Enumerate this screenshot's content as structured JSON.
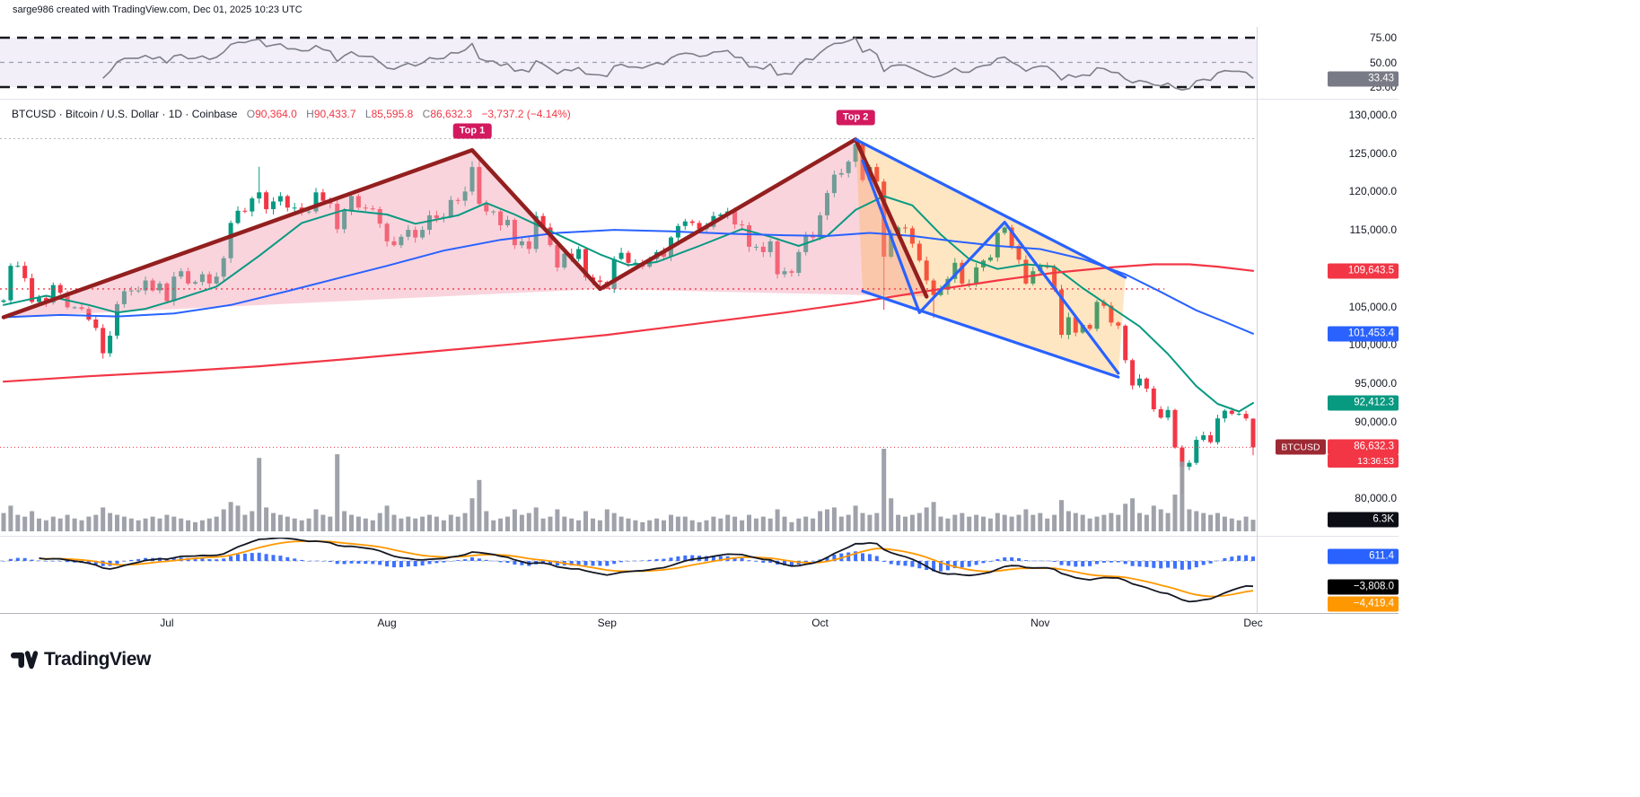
{
  "attribution": "sarge986 created with TradingView.com, Dec 01, 2025 10:23 UTC",
  "brand": {
    "name": "TradingView"
  },
  "symbol": {
    "title": "BTCUSD · Bitcoin / U.S. Dollar · 1D · Coinbase",
    "ohlc": {
      "o_label": "O",
      "o_value": "90,364.0",
      "h_label": "H",
      "h_value": "90,433.7",
      "l_label": "L",
      "l_value": "85,595.8",
      "c_label": "C",
      "c_value": "86,632.3",
      "change": "−3,737.2 (−4.14%)"
    }
  },
  "colors": {
    "up": "#089981",
    "down": "#f23645",
    "ma_fast": "#089981",
    "ma_mid": "#2962ff",
    "ma_slow": "#f23645",
    "top_badge": "#d3195f",
    "pattern_maroon": "#931f1f",
    "pattern_blue": "#2962ff",
    "pink_fill": "rgba(244,160,180,0.45)",
    "orange_fill": "rgba(255,167,38,0.28)",
    "volume": "#9598a1",
    "macd_hist": "#2962ff",
    "macd_line": "#131722",
    "signal_line": "#ff9800",
    "rsi_line": "#7e7e87",
    "rsi_band": "#7b61c4"
  },
  "rsi_panel": {
    "levels": [
      {
        "text": "75.00",
        "value": 75
      },
      {
        "text": "50.00",
        "value": 50
      },
      {
        "text": "25.00",
        "value": 25
      }
    ],
    "last": {
      "text": "33.43",
      "value": 33.43,
      "bg": "#787b86"
    }
  },
  "price_axis": {
    "labels": [
      {
        "text": "130,000.0",
        "price": 130000
      },
      {
        "text": "125,000.0",
        "price": 125000
      },
      {
        "text": "120,000.0",
        "price": 120000
      },
      {
        "text": "115,000.0",
        "price": 115000
      },
      {
        "text": "105,000.0",
        "price": 105000
      },
      {
        "text": "100,000.0",
        "price": 100000
      },
      {
        "text": "95,000.0",
        "price": 95000
      },
      {
        "text": "90,000.0",
        "price": 90000
      },
      {
        "text": "80,000.0",
        "price": 80000
      }
    ],
    "ma_badges": [
      {
        "text": "109,643.5",
        "price": 109643.5,
        "bg": "#f23645"
      },
      {
        "text": "101,453.4",
        "price": 101453.4,
        "bg": "#2962ff"
      },
      {
        "text": "92,412.3",
        "price": 92412.3,
        "bg": "#089981"
      }
    ],
    "last_price": {
      "symbol": "BTCUSD",
      "text": "86,632.3",
      "price": 86632.3,
      "bg": "#f23645",
      "symbol_bg": "#9d2933",
      "countdown": "13:36:53"
    }
  },
  "volume_panel": {
    "last": {
      "text": "6.3K",
      "value": 6.3,
      "bg": "#0b0e14"
    }
  },
  "macd_panel": {
    "badges": [
      {
        "text": "611.4",
        "value": 611.4,
        "bg": "#2962ff"
      },
      {
        "text": "−3,808.0",
        "value": -3808.0,
        "bg": "#000000"
      },
      {
        "text": "−4,419.4",
        "value": -4419.4,
        "bg": "#ff9800"
      }
    ]
  },
  "x_axis": {
    "months": [
      {
        "label": "Jul",
        "index": 23
      },
      {
        "label": "Aug",
        "index": 54
      },
      {
        "label": "Sep",
        "index": 85
      },
      {
        "label": "Oct",
        "index": 115
      },
      {
        "label": "Nov",
        "index": 146
      },
      {
        "label": "Dec",
        "index": 176
      }
    ]
  },
  "chart_data": {
    "type": "candlestick",
    "title": "BTCUSD Bitcoin / U.S. Dollar 1D Coinbase",
    "ylim": [
      80000,
      130000
    ],
    "start_date": "2025-06-08",
    "first_open": 105600,
    "closes": [
      105800,
      110300,
      110300,
      108700,
      105600,
      106100,
      105500,
      107800,
      106800,
      104900,
      104900,
      104700,
      103300,
      102200,
      98900,
      101200,
      105300,
      107000,
      107100,
      107100,
      108400,
      107100,
      108000,
      105700,
      108900,
      109600,
      108000,
      108200,
      109200,
      108000,
      108900,
      111300,
      115900,
      117500,
      117400,
      119100,
      119900,
      117700,
      118700,
      119400,
      117900,
      117900,
      117300,
      117400,
      119900,
      118800,
      118400,
      115100,
      117500,
      119400,
      117900,
      117800,
      117700,
      115800,
      113500,
      113000,
      114100,
      115000,
      114000,
      115000,
      116900,
      116500,
      116700,
      118900,
      118800,
      120000,
      123200,
      118400,
      117400,
      117400,
      115600,
      116300,
      113000,
      113500,
      112500,
      116800,
      115300,
      113000,
      110100,
      111900,
      111200,
      112500,
      108800,
      108400,
      108200,
      107300,
      111200,
      112000,
      110700,
      110700,
      110200,
      111200,
      112100,
      111500,
      114000,
      115500,
      116100,
      115900,
      115100,
      115400,
      116800,
      117000,
      117400,
      115700,
      115600,
      112800,
      112800,
      112100,
      113500,
      109200,
      109600,
      109400,
      112100,
      114300,
      114000,
      116900,
      119800,
      122200,
      122400,
      123900,
      126200,
      121500,
      123200,
      121300,
      111500,
      114600,
      115300,
      115200,
      113200,
      111000,
      108400,
      106500,
      107200,
      108600,
      110700,
      108000,
      108000,
      110100,
      111000,
      111400,
      114600,
      115300,
      112900,
      111100,
      108000,
      109600,
      110300,
      110100,
      107200,
      101300,
      103600,
      101600,
      102600,
      102100,
      105600,
      105100,
      102900,
      102500,
      98000,
      94700,
      95600,
      94300,
      91600,
      90500,
      91500,
      86600,
      84100,
      84600,
      87600,
      88200,
      87300,
      90400,
      91400,
      91000,
      91000,
      90400,
      86632
    ],
    "wick_overrides": {
      "14": {
        "low": 98200
      },
      "36": {
        "high": 123236
      },
      "67": {
        "high": 124474
      },
      "85": {
        "low": 107270
      },
      "120": {
        "high": 126270
      },
      "124": {
        "low": 104582
      },
      "131": {
        "low": 103530
      },
      "166": {
        "low": 80524
      },
      "176": {
        "open": 90364,
        "high": 90433.7,
        "low": 85595.8,
        "close": 86632.3
      }
    },
    "volumes_k": [
      10,
      14,
      9,
      8,
      11,
      7,
      6,
      8,
      7,
      9,
      7,
      6,
      8,
      9,
      13,
      10,
      9,
      8,
      7,
      6,
      7,
      8,
      7,
      9,
      8,
      7,
      6,
      5,
      6,
      7,
      8,
      12,
      16,
      14,
      9,
      11,
      40,
      13,
      10,
      9,
      8,
      7,
      6,
      7,
      12,
      9,
      8,
      42,
      11,
      9,
      8,
      7,
      6,
      10,
      14,
      9,
      7,
      8,
      7,
      8,
      9,
      8,
      6,
      9,
      8,
      10,
      18,
      28,
      11,
      6,
      7,
      8,
      12,
      9,
      10,
      13,
      7,
      8,
      12,
      8,
      7,
      6,
      11,
      7,
      6,
      12,
      10,
      8,
      7,
      6,
      5,
      6,
      7,
      6,
      9,
      8,
      8,
      6,
      5,
      6,
      8,
      7,
      9,
      8,
      6,
      9,
      7,
      8,
      7,
      12,
      8,
      5,
      7,
      8,
      7,
      11,
      12,
      13,
      8,
      9,
      14,
      10,
      9,
      10,
      45,
      18,
      9,
      8,
      9,
      10,
      13,
      16,
      8,
      7,
      9,
      10,
      8,
      9,
      8,
      7,
      10,
      9,
      8,
      9,
      12,
      9,
      10,
      7,
      9,
      17,
      11,
      10,
      9,
      7,
      8,
      9,
      10,
      9,
      15,
      18,
      10,
      9,
      14,
      12,
      10,
      20,
      38,
      12,
      11,
      10,
      9,
      10,
      8,
      7,
      6,
      8,
      6.3
    ],
    "ma_lines": [
      {
        "name": "ma-fast-green",
        "color": "#089981",
        "width": 2,
        "last": 92412.3,
        "points": [
          [
            0,
            105200
          ],
          [
            6,
            106400
          ],
          [
            12,
            105200
          ],
          [
            16,
            104200
          ],
          [
            20,
            104700
          ],
          [
            24,
            105800
          ],
          [
            30,
            107600
          ],
          [
            36,
            111600
          ],
          [
            42,
            115900
          ],
          [
            48,
            117600
          ],
          [
            54,
            117000
          ],
          [
            58,
            115800
          ],
          [
            64,
            116900
          ],
          [
            68,
            118500
          ],
          [
            72,
            117000
          ],
          [
            78,
            114400
          ],
          [
            84,
            111800
          ],
          [
            88,
            110400
          ],
          [
            92,
            110800
          ],
          [
            98,
            112900
          ],
          [
            104,
            115100
          ],
          [
            108,
            114100
          ],
          [
            112,
            112900
          ],
          [
            116,
            114200
          ],
          [
            120,
            117600
          ],
          [
            124,
            119400
          ],
          [
            128,
            118200
          ],
          [
            132,
            114400
          ],
          [
            136,
            111200
          ],
          [
            140,
            109900
          ],
          [
            144,
            110500
          ],
          [
            148,
            110200
          ],
          [
            152,
            107400
          ],
          [
            156,
            104900
          ],
          [
            160,
            102400
          ],
          [
            164,
            98800
          ],
          [
            168,
            94600
          ],
          [
            171,
            92300
          ],
          [
            174,
            91300
          ],
          [
            176,
            92412.3
          ]
        ]
      },
      {
        "name": "ma-mid-blue",
        "color": "#2962ff",
        "width": 2,
        "last": 101453.4,
        "points": [
          [
            0,
            103600
          ],
          [
            8,
            103900
          ],
          [
            16,
            103700
          ],
          [
            24,
            104100
          ],
          [
            32,
            105200
          ],
          [
            40,
            107000
          ],
          [
            48,
            108900
          ],
          [
            54,
            110300
          ],
          [
            62,
            112300
          ],
          [
            70,
            113700
          ],
          [
            78,
            114600
          ],
          [
            86,
            115000
          ],
          [
            94,
            114800
          ],
          [
            102,
            114500
          ],
          [
            110,
            114300
          ],
          [
            116,
            114200
          ],
          [
            122,
            114600
          ],
          [
            128,
            114200
          ],
          [
            134,
            113500
          ],
          [
            140,
            112900
          ],
          [
            146,
            112500
          ],
          [
            152,
            111200
          ],
          [
            158,
            109200
          ],
          [
            163,
            106900
          ],
          [
            168,
            104500
          ],
          [
            172,
            103000
          ],
          [
            176,
            101453.4
          ]
        ]
      },
      {
        "name": "ma-slow-red",
        "color": "#f23645",
        "width": 2.2,
        "last": 109643.5,
        "points": [
          [
            0,
            95200
          ],
          [
            12,
            95900
          ],
          [
            24,
            96500
          ],
          [
            36,
            97200
          ],
          [
            48,
            98100
          ],
          [
            60,
            99100
          ],
          [
            72,
            100100
          ],
          [
            85,
            101300
          ],
          [
            98,
            102800
          ],
          [
            110,
            104200
          ],
          [
            120,
            105500
          ],
          [
            130,
            107000
          ],
          [
            140,
            108400
          ],
          [
            148,
            109400
          ],
          [
            156,
            110100
          ],
          [
            162,
            110500
          ],
          [
            167,
            110500
          ],
          [
            171,
            110200
          ],
          [
            176,
            109643.5
          ]
        ]
      }
    ],
    "drawings": {
      "maroon_lines": [
        [
          [
            0,
            103600
          ],
          [
            66,
            125400
          ],
          [
            84,
            107300
          ]
        ],
        [
          [
            84,
            107300
          ],
          [
            120,
            126800
          ],
          [
            130,
            106300
          ]
        ]
      ],
      "pink_fills": [
        [
          [
            0,
            103600
          ],
          [
            66,
            125400
          ],
          [
            84,
            107300
          ]
        ],
        [
          [
            84,
            107300
          ],
          [
            120,
            126800
          ],
          [
            130,
            106300
          ]
        ]
      ],
      "blue_lines": [
        [
          [
            120,
            126800
          ],
          [
            158,
            108800
          ]
        ],
        [
          [
            121,
            107000
          ],
          [
            157,
            95800
          ]
        ],
        [
          [
            121,
            124000
          ],
          [
            129,
            104200
          ],
          [
            141,
            116000
          ],
          [
            157,
            96300
          ]
        ]
      ],
      "orange_fill": [
        [
          120,
          126800
        ],
        [
          158,
          108800
        ],
        [
          157,
          95800
        ],
        [
          121,
          107000
        ]
      ],
      "h_lines": [
        {
          "price": 126900,
          "color": "#b2b5be",
          "dash": "2,3",
          "from": 0,
          "to": 177,
          "width": 1
        },
        {
          "price": 107300,
          "color": "#f23645",
          "dash": "2,4",
          "from": 0,
          "to": 164,
          "width": 1.4
        },
        {
          "price": 86632.3,
          "color": "#f23645",
          "dash": "1,3",
          "from": 0,
          "to": 177,
          "width": 1
        }
      ]
    },
    "annotations": [
      {
        "text": "Top 1",
        "index": 66,
        "price": 127900
      },
      {
        "text": "Top 2",
        "index": 120,
        "price": 129600
      }
    ],
    "indicators": {
      "rsi": {
        "period": 14,
        "levels": [
          75,
          50,
          25
        ],
        "last": 33.43
      },
      "macd": {
        "fast": 12,
        "slow": 26,
        "signal": 9,
        "macd_last": -3808.0,
        "signal_last": -4419.4,
        "hist_last": 611.4
      }
    }
  }
}
